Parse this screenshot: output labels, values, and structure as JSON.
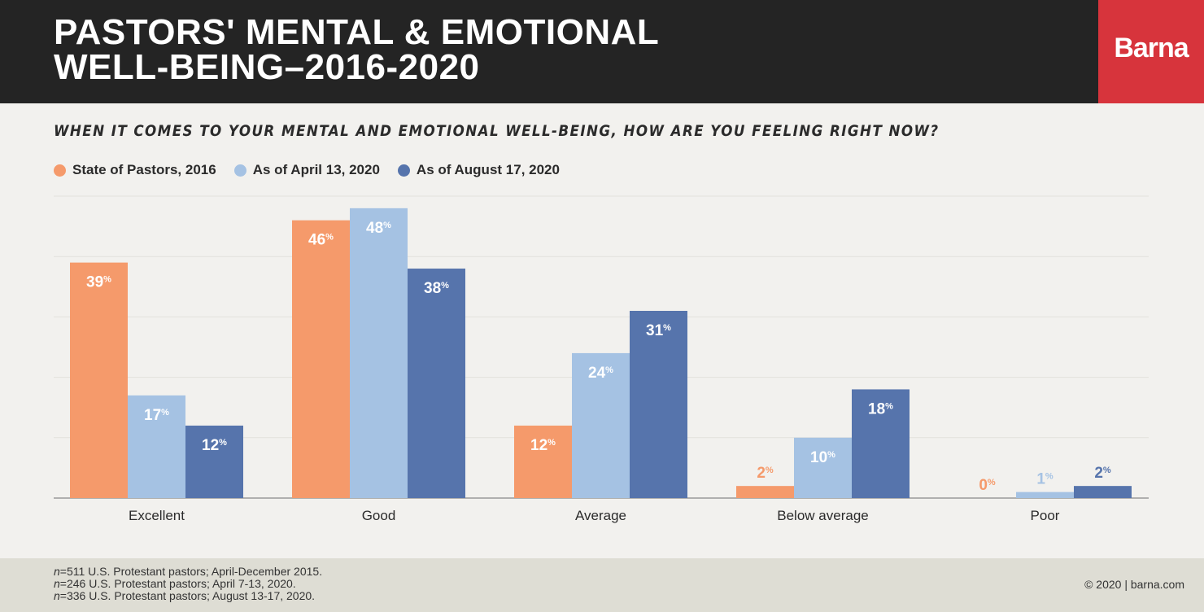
{
  "header": {
    "title_line1": "PASTORS' MENTAL & EMOTIONAL",
    "title_line2": "WELL-BEING–2016-2020",
    "brand": "Barna",
    "background": "#242424",
    "brand_color": "#d7343c"
  },
  "chart_data": {
    "type": "bar",
    "title": "PASTORS' MENTAL & EMOTIONAL WELL-BEING–2016-2020",
    "subtitle": "WHEN IT COMES TO YOUR MENTAL AND EMOTIONAL WELL-BEING, HOW ARE YOU FEELING RIGHT NOW?",
    "categories": [
      "Excellent",
      "Good",
      "Average",
      "Below average",
      "Poor"
    ],
    "series": [
      {
        "name": "State of Pastors, 2016",
        "values": [
          39,
          46,
          12,
          2,
          0
        ],
        "color": "#f59a6b",
        "label_color": "#f59a6b"
      },
      {
        "name": "As of April 13, 2020",
        "values": [
          17,
          48,
          24,
          10,
          1
        ],
        "color": "#a5c2e3",
        "label_color": "#a5c2e3"
      },
      {
        "name": "As of August 17, 2020",
        "values": [
          12,
          38,
          31,
          18,
          2
        ],
        "color": "#5674ac",
        "label_color": "#5674ac"
      }
    ],
    "value_suffix": "%",
    "ylim": [
      0,
      50
    ],
    "grid": true,
    "legend_position": "top-left",
    "xlabel": "",
    "ylabel": ""
  },
  "footer": {
    "notes": [
      {
        "n": "n",
        "text": "=511 U.S. Protestant pastors; April-December 2015."
      },
      {
        "n": "n",
        "text": "=246 U.S. Protestant pastors; April 7-13, 2020."
      },
      {
        "n": "n",
        "text": "=336 U.S. Protestant pastors; August 13-17, 2020."
      }
    ],
    "copyright": "© 2020 | barna.com"
  }
}
